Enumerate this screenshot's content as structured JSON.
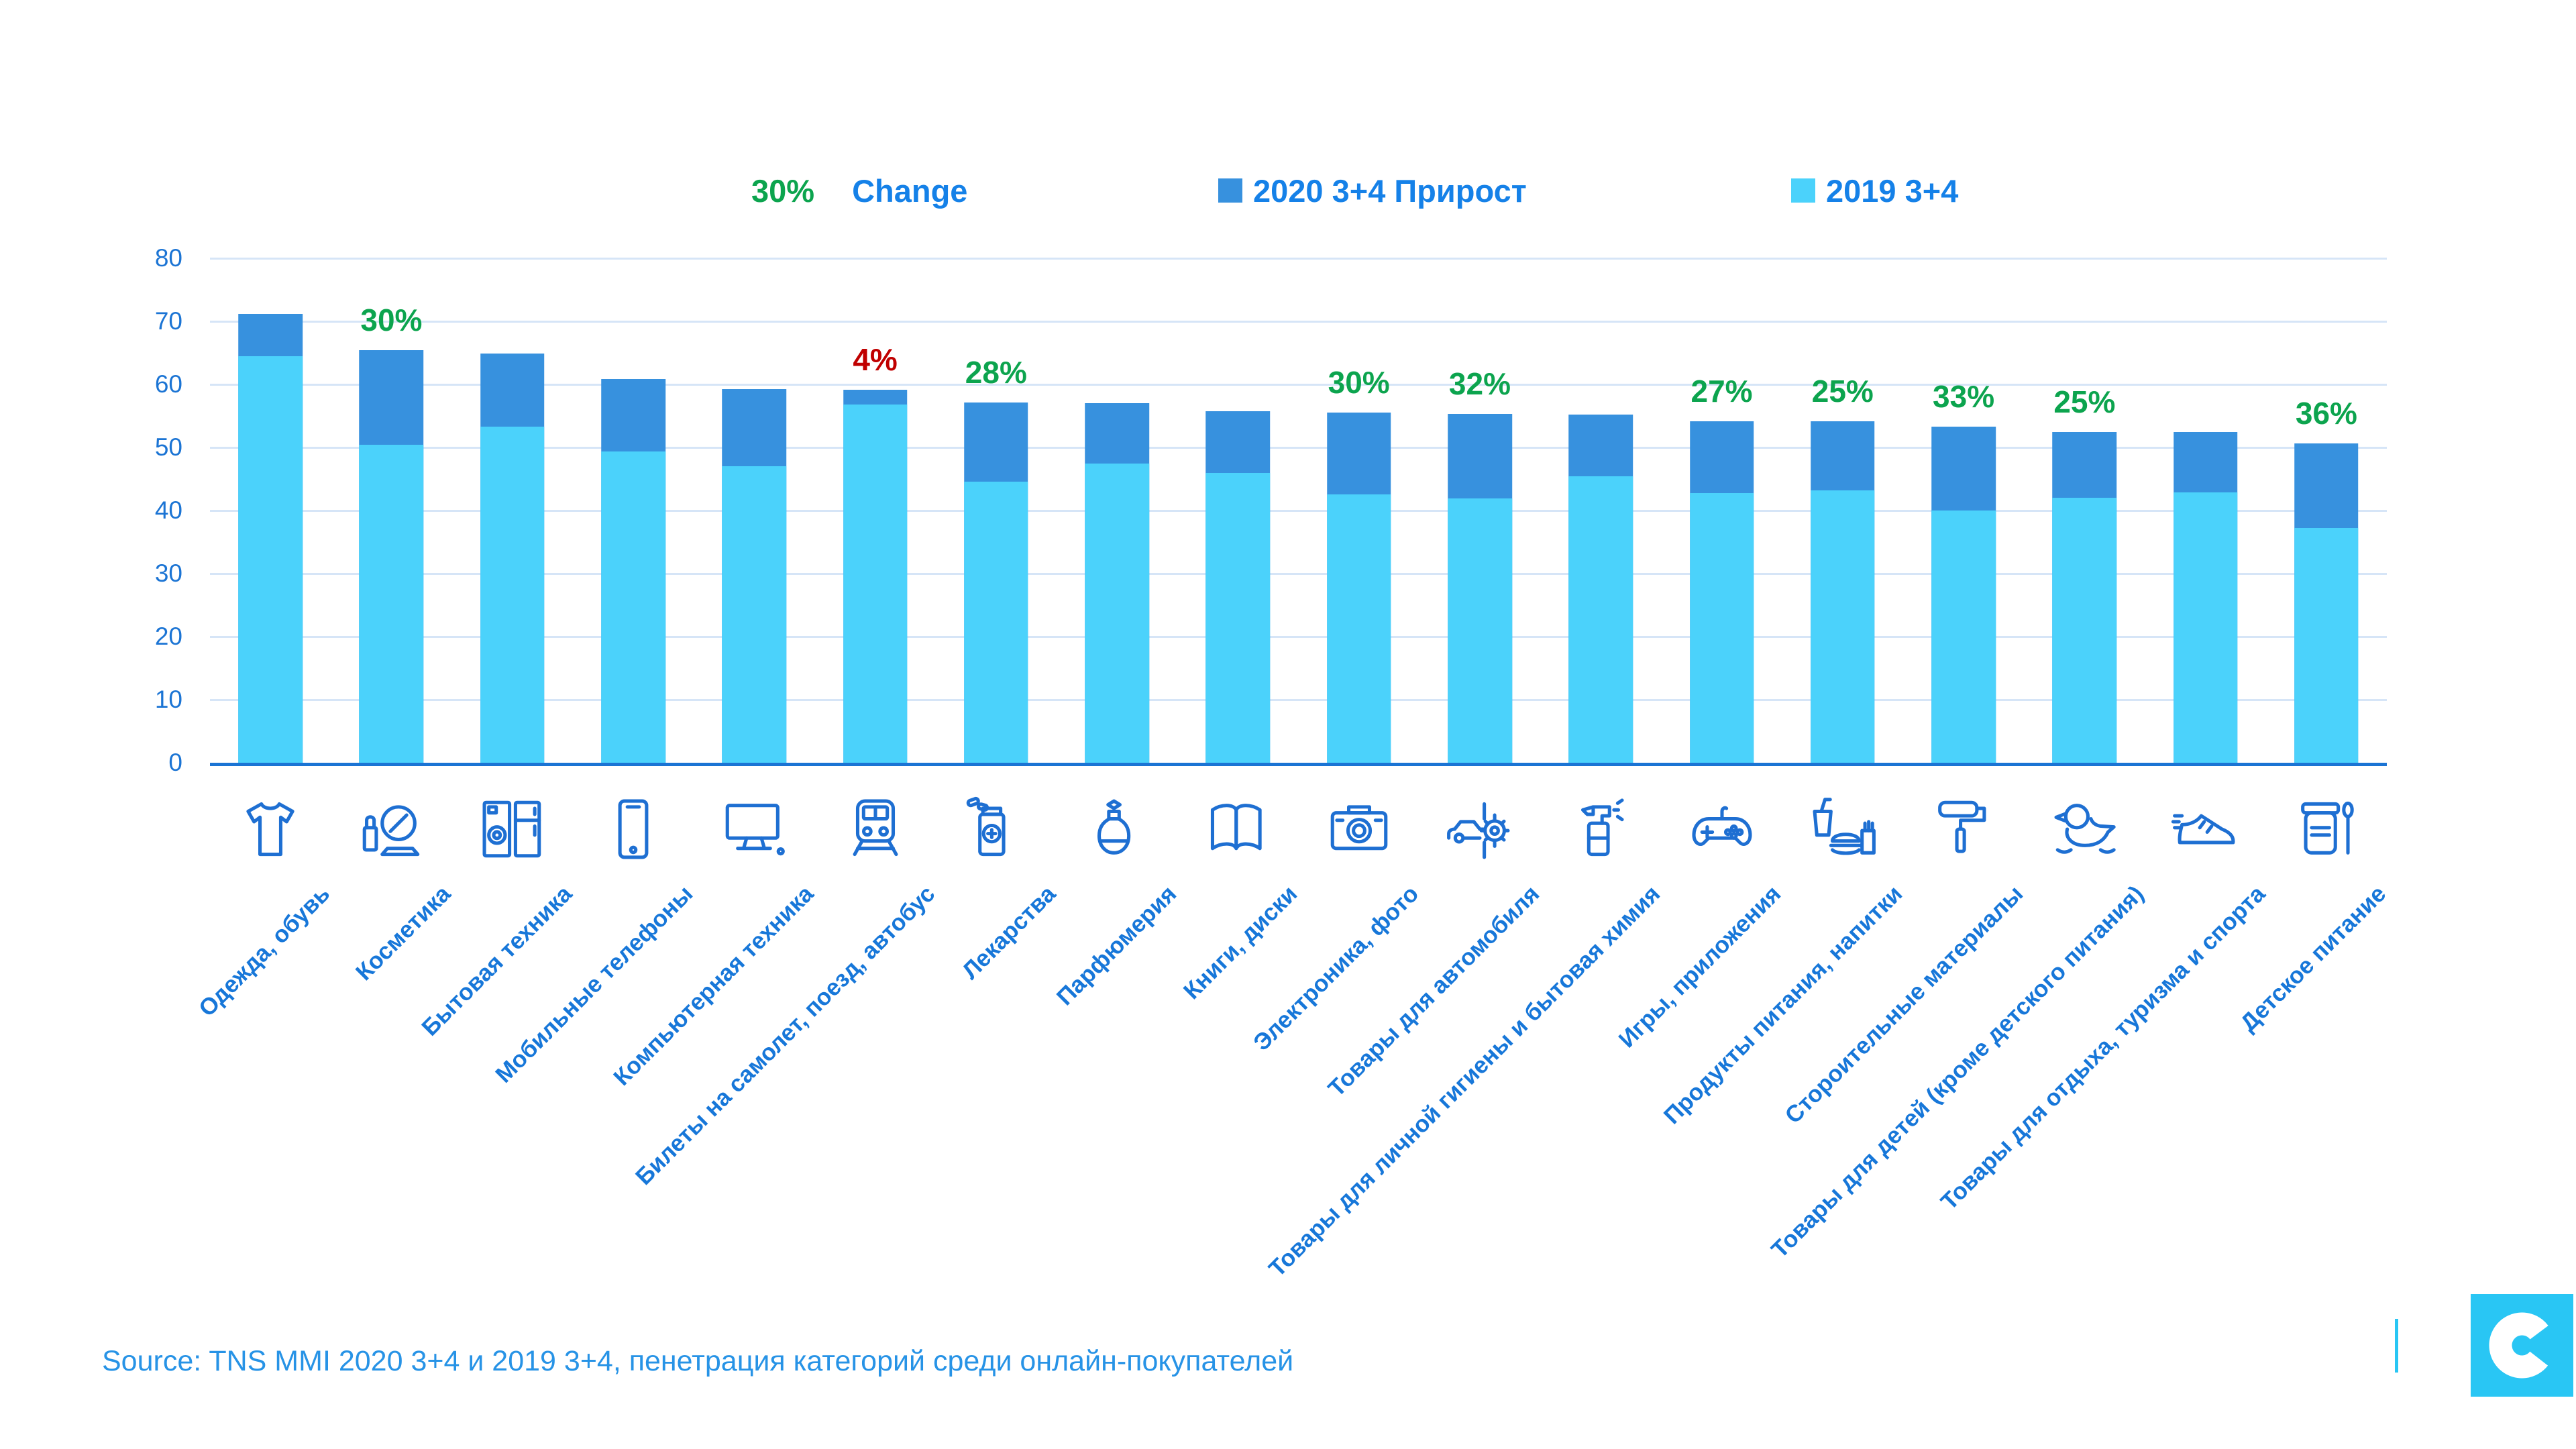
{
  "legend": {
    "change_value": "30%",
    "change_label": "Change",
    "series_2020_label": "2020 3+4 Прирост",
    "series_2019_label": "2019 3+4"
  },
  "colors": {
    "bar_2019": "#4BD2FB",
    "bar_2020": "#3791DE",
    "grid": "#D6E5F7",
    "axis": "#1B74D4",
    "tick_label": "#1B74D4",
    "category_label": "#1777D9",
    "legend_text": "#1581E8",
    "change_green": "#0CA44E",
    "change_red": "#C00000",
    "source_text": "#2793E6",
    "logo_bg": "#29C6F4",
    "icon_stroke": "#1E6FD2"
  },
  "chart_data": {
    "type": "bar",
    "stacked": true,
    "title": "",
    "xlabel": "",
    "ylabel": "",
    "ylim": [
      0,
      80
    ],
    "ytick_step": 10,
    "grid": true,
    "legend_position": "top",
    "categories": [
      "Одежда, обувь",
      "Косметика",
      "Бытовая техника",
      "Мобильные телефоны",
      "Компьютерная техника",
      "Билеты на самолет, поезд, автобус",
      "Лекарства",
      "Парфюмерия",
      "Книги, диски",
      "Электроника, фото",
      "Товары для автомобиля",
      "Товары для личной гигиены и бытовая химия",
      "Игры, приложения",
      "Продукты питания, напитки",
      "Стороительные материалы",
      "Товары для детей (кроме детского питания)",
      "Товары для отдыха, туризма и спорта",
      "Детское питание"
    ],
    "icons": [
      "tshirt-icon",
      "cosmetics-icon",
      "appliances-icon",
      "smartphone-icon",
      "computer-icon",
      "train-ticket-icon",
      "medicine-icon",
      "perfume-icon",
      "book-icon",
      "camera-icon",
      "car-parts-icon",
      "spray-bottle-icon",
      "gamepad-icon",
      "fastfood-icon",
      "paint-roller-icon",
      "rubber-duck-icon",
      "sneaker-icon",
      "baby-food-icon"
    ],
    "series": [
      {
        "name": "2019 3+4",
        "role": "base-2019-penetration",
        "values": [
          64.5,
          50.4,
          53.3,
          49.4,
          47,
          56.8,
          44.6,
          47.4,
          46,
          42.6,
          41.9,
          45.4,
          42.8,
          43.2,
          40,
          42,
          42.9,
          37.2
        ]
      },
      {
        "name": "2020 3+4 Прирост",
        "role": "total-2020-penetration",
        "values": [
          71.2,
          65.4,
          64.9,
          60.9,
          59.3,
          59.1,
          57.1,
          57,
          55.7,
          55.5,
          55.3,
          55.2,
          54.2,
          54.1,
          53.3,
          52.5,
          52.5,
          50.6
        ]
      }
    ],
    "change_labels": [
      "",
      "30%",
      "",
      "",
      "",
      "4%",
      "28%",
      "",
      "",
      "30%",
      "32%",
      "",
      "27%",
      "25%",
      "33%",
      "25%",
      "",
      "36%"
    ],
    "change_label_colors": [
      "",
      "green",
      "",
      "",
      "",
      "red",
      "green",
      "",
      "",
      "green",
      "green",
      "",
      "green",
      "green",
      "green",
      "green",
      "",
      "green"
    ]
  },
  "source_text": "Source: TNS MMI 2020 3+4 и 2019 3+4, пенетрация категорий среди онлайн-покупателей",
  "logo_letter": "C"
}
